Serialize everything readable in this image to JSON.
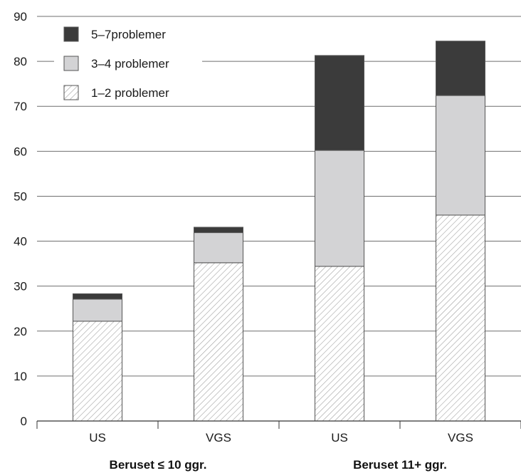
{
  "chart_data": {
    "type": "bar",
    "stacked": true,
    "ylim": [
      0,
      90
    ],
    "yticks": [
      0,
      10,
      20,
      30,
      40,
      50,
      60,
      70,
      80,
      90
    ],
    "grid": "horizontal",
    "legend_position": "top-left",
    "categories": [
      "US",
      "VGS",
      "US",
      "VGS"
    ],
    "groups": [
      {
        "label": "Beruset ≤ 10 ggr.",
        "categories": [
          0,
          1
        ]
      },
      {
        "label": "Beruset 11+ ggr.",
        "categories": [
          2,
          3
        ]
      }
    ],
    "series": [
      {
        "name": "1–2 problemer",
        "values": [
          22.2,
          35.2,
          34.4,
          45.8
        ],
        "color": "#ffffff",
        "pattern": "hatch"
      },
      {
        "name": "3–4 problemer",
        "values": [
          4.9,
          6.7,
          25.8,
          26.6
        ],
        "color": "#d3d3d5"
      },
      {
        "name": "5–7problemer",
        "values": [
          1.2,
          1.2,
          21.1,
          12.1
        ],
        "color": "#3b3b3b"
      }
    ]
  }
}
